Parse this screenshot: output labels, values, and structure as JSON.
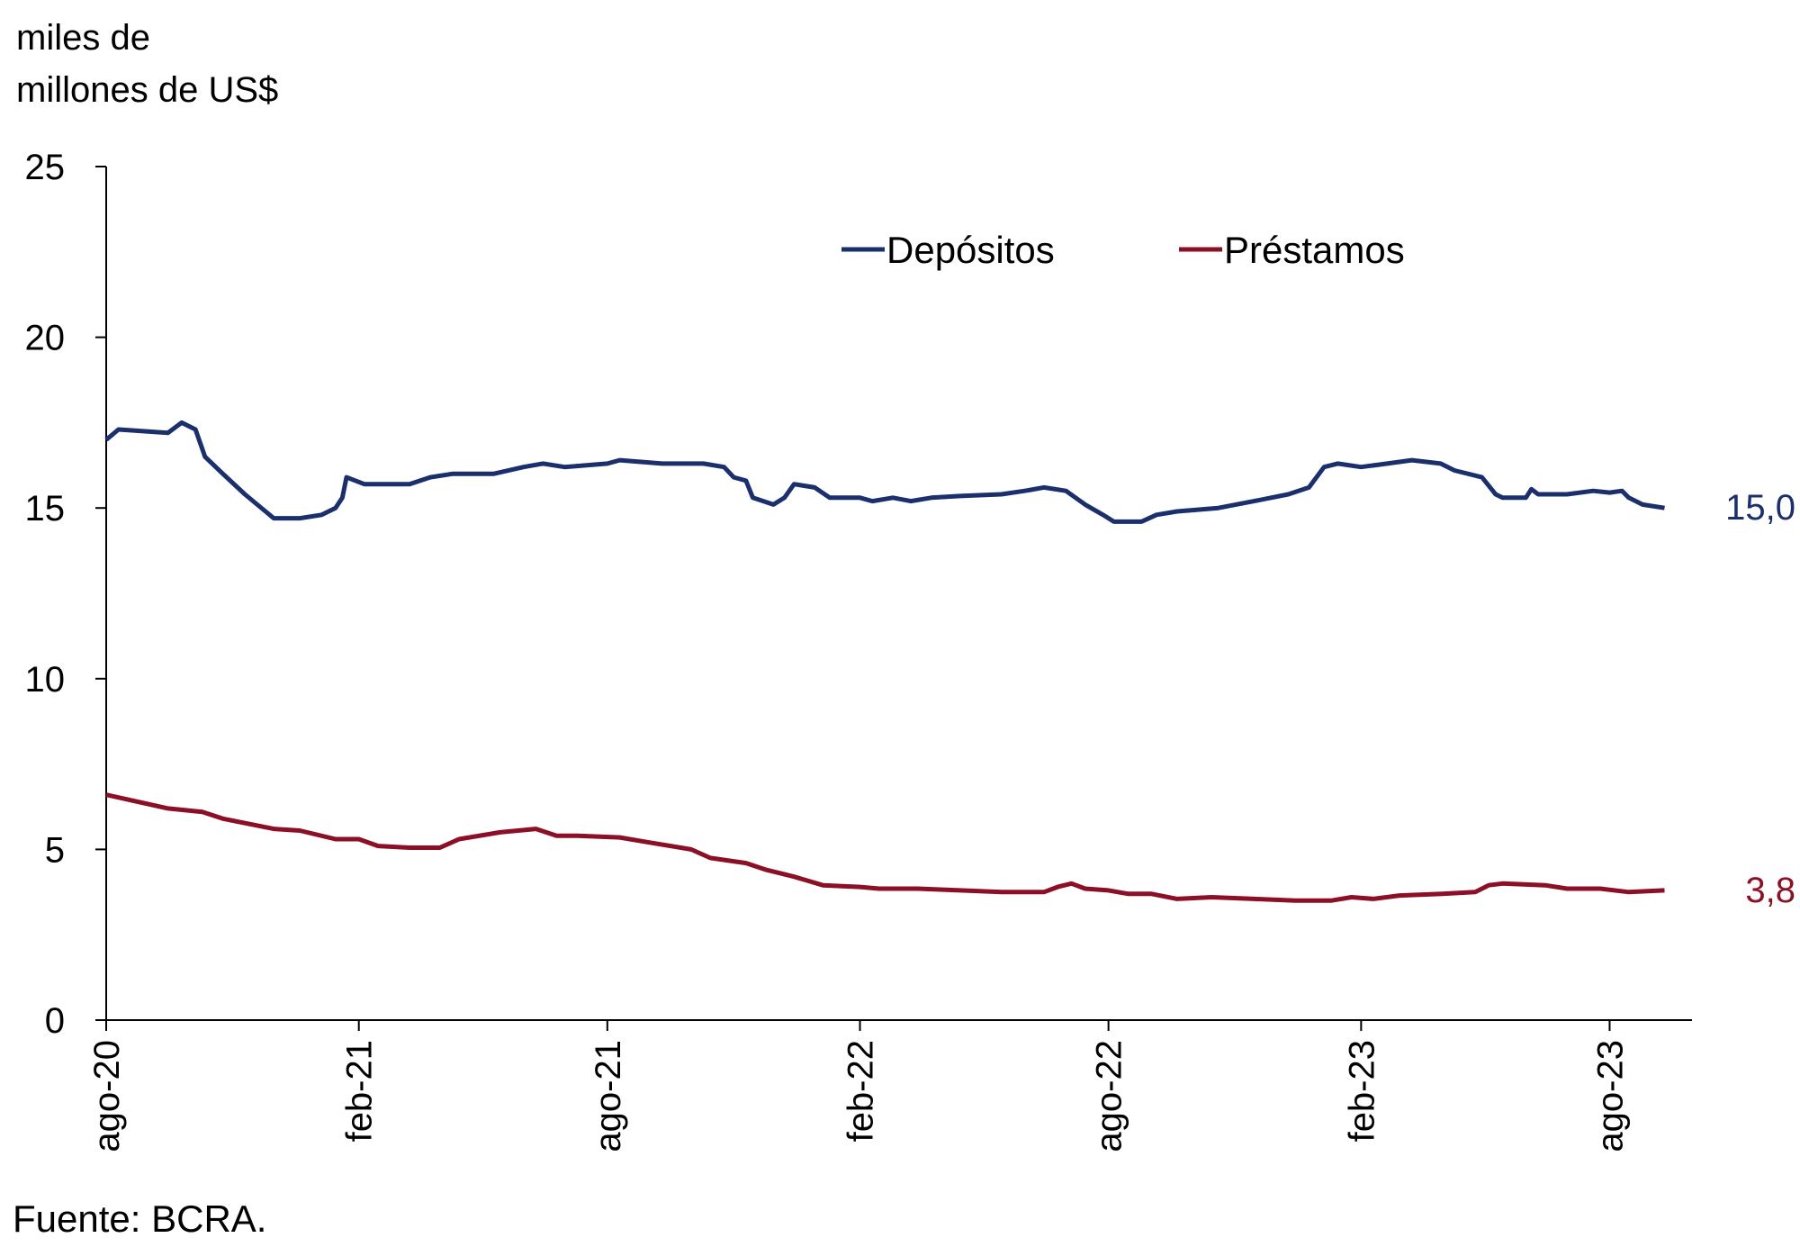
{
  "chart_data": {
    "type": "line",
    "ylabel": [
      "miles de",
      "millones de US$"
    ],
    "ylim": [
      0,
      25
    ],
    "yticks": [
      0,
      5,
      10,
      15,
      20,
      25
    ],
    "xlim": [
      "2020-08-01",
      "2023-09-30"
    ],
    "xticks": [
      {
        "date": "2020-08-01",
        "label": "ago-20"
      },
      {
        "date": "2021-02-01",
        "label": "feb-21"
      },
      {
        "date": "2021-08-01",
        "label": "ago-21"
      },
      {
        "date": "2022-02-01",
        "label": "feb-22"
      },
      {
        "date": "2022-08-01",
        "label": "ago-22"
      },
      {
        "date": "2023-02-01",
        "label": "feb-23"
      },
      {
        "date": "2023-08-01",
        "label": "ago-23"
      }
    ],
    "legend_position": "top-center",
    "series": [
      {
        "name": "Depósitos",
        "color": "#1a2f6b",
        "end_label": "15,0",
        "points": [
          [
            "2020-08-01",
            17.0
          ],
          [
            "2020-08-10",
            17.3
          ],
          [
            "2020-09-15",
            17.2
          ],
          [
            "2020-09-25",
            17.5
          ],
          [
            "2020-10-05",
            17.3
          ],
          [
            "2020-10-12",
            16.5
          ],
          [
            "2020-10-25",
            16.0
          ],
          [
            "2020-11-10",
            15.4
          ],
          [
            "2020-11-25",
            14.9
          ],
          [
            "2020-12-01",
            14.7
          ],
          [
            "2020-12-20",
            14.7
          ],
          [
            "2021-01-05",
            14.8
          ],
          [
            "2021-01-15",
            15.0
          ],
          [
            "2021-01-20",
            15.3
          ],
          [
            "2021-01-23",
            15.9
          ],
          [
            "2021-02-05",
            15.7
          ],
          [
            "2021-03-10",
            15.7
          ],
          [
            "2021-03-25",
            15.9
          ],
          [
            "2021-04-10",
            16.0
          ],
          [
            "2021-05-10",
            16.0
          ],
          [
            "2021-06-01",
            16.2
          ],
          [
            "2021-06-15",
            16.3
          ],
          [
            "2021-07-01",
            16.2
          ],
          [
            "2021-08-01",
            16.3
          ],
          [
            "2021-08-10",
            16.4
          ],
          [
            "2021-09-10",
            16.3
          ],
          [
            "2021-10-10",
            16.3
          ],
          [
            "2021-10-25",
            16.2
          ],
          [
            "2021-11-01",
            15.9
          ],
          [
            "2021-11-10",
            15.8
          ],
          [
            "2021-11-15",
            15.3
          ],
          [
            "2021-11-30",
            15.1
          ],
          [
            "2021-12-08",
            15.3
          ],
          [
            "2021-12-15",
            15.7
          ],
          [
            "2021-12-30",
            15.6
          ],
          [
            "2022-01-10",
            15.3
          ],
          [
            "2022-02-01",
            15.3
          ],
          [
            "2022-02-10",
            15.2
          ],
          [
            "2022-02-25",
            15.3
          ],
          [
            "2022-03-10",
            15.2
          ],
          [
            "2022-03-25",
            15.3
          ],
          [
            "2022-04-15",
            15.35
          ],
          [
            "2022-05-15",
            15.4
          ],
          [
            "2022-06-01",
            15.5
          ],
          [
            "2022-06-15",
            15.6
          ],
          [
            "2022-07-01",
            15.5
          ],
          [
            "2022-07-15",
            15.1
          ],
          [
            "2022-07-28",
            14.8
          ],
          [
            "2022-08-05",
            14.6
          ],
          [
            "2022-08-15",
            14.6
          ],
          [
            "2022-08-25",
            14.6
          ],
          [
            "2022-09-05",
            14.8
          ],
          [
            "2022-09-20",
            14.9
          ],
          [
            "2022-10-20",
            15.0
          ],
          [
            "2022-11-15",
            15.2
          ],
          [
            "2022-12-10",
            15.4
          ],
          [
            "2022-12-25",
            15.6
          ],
          [
            "2023-01-05",
            16.2
          ],
          [
            "2023-01-15",
            16.3
          ],
          [
            "2023-02-01",
            16.2
          ],
          [
            "2023-02-20",
            16.3
          ],
          [
            "2023-03-10",
            16.4
          ],
          [
            "2023-03-31",
            16.3
          ],
          [
            "2023-04-10",
            16.1
          ],
          [
            "2023-04-30",
            15.9
          ],
          [
            "2023-05-10",
            15.4
          ],
          [
            "2023-05-15",
            15.3
          ],
          [
            "2023-06-01",
            15.3
          ],
          [
            "2023-06-05",
            15.55
          ],
          [
            "2023-06-10",
            15.4
          ],
          [
            "2023-07-01",
            15.4
          ],
          [
            "2023-07-20",
            15.5
          ],
          [
            "2023-08-01",
            15.45
          ],
          [
            "2023-08-10",
            15.5
          ],
          [
            "2023-08-15",
            15.3
          ],
          [
            "2023-08-25",
            15.1
          ],
          [
            "2023-09-10",
            15.0
          ]
        ]
      },
      {
        "name": "Préstamos",
        "color": "#8b0f25",
        "end_label": "3,8",
        "points": [
          [
            "2020-08-01",
            6.6
          ],
          [
            "2020-09-15",
            6.2
          ],
          [
            "2020-10-10",
            6.1
          ],
          [
            "2020-10-25",
            5.9
          ],
          [
            "2020-12-01",
            5.6
          ],
          [
            "2020-12-20",
            5.55
          ],
          [
            "2021-01-15",
            5.3
          ],
          [
            "2021-02-01",
            5.3
          ],
          [
            "2021-02-15",
            5.1
          ],
          [
            "2021-03-10",
            5.05
          ],
          [
            "2021-04-01",
            5.05
          ],
          [
            "2021-04-15",
            5.3
          ],
          [
            "2021-05-15",
            5.5
          ],
          [
            "2021-06-10",
            5.6
          ],
          [
            "2021-06-25",
            5.4
          ],
          [
            "2021-07-10",
            5.4
          ],
          [
            "2021-08-10",
            5.35
          ],
          [
            "2021-09-01",
            5.2
          ],
          [
            "2021-10-01",
            5.0
          ],
          [
            "2021-10-15",
            4.75
          ],
          [
            "2021-11-10",
            4.6
          ],
          [
            "2021-11-25",
            4.4
          ],
          [
            "2021-12-15",
            4.2
          ],
          [
            "2022-01-05",
            3.95
          ],
          [
            "2022-02-01",
            3.9
          ],
          [
            "2022-02-15",
            3.85
          ],
          [
            "2022-03-15",
            3.85
          ],
          [
            "2022-04-15",
            3.8
          ],
          [
            "2022-05-15",
            3.75
          ],
          [
            "2022-06-15",
            3.75
          ],
          [
            "2022-06-25",
            3.9
          ],
          [
            "2022-07-05",
            4.0
          ],
          [
            "2022-07-15",
            3.85
          ],
          [
            "2022-08-01",
            3.8
          ],
          [
            "2022-08-15",
            3.7
          ],
          [
            "2022-09-01",
            3.7
          ],
          [
            "2022-09-20",
            3.55
          ],
          [
            "2022-10-15",
            3.6
          ],
          [
            "2022-11-15",
            3.55
          ],
          [
            "2022-12-15",
            3.5
          ],
          [
            "2023-01-10",
            3.5
          ],
          [
            "2023-01-25",
            3.6
          ],
          [
            "2023-02-10",
            3.55
          ],
          [
            "2023-03-01",
            3.65
          ],
          [
            "2023-04-01",
            3.7
          ],
          [
            "2023-04-25",
            3.75
          ],
          [
            "2023-05-05",
            3.95
          ],
          [
            "2023-05-15",
            4.0
          ],
          [
            "2023-06-15",
            3.95
          ],
          [
            "2023-07-01",
            3.85
          ],
          [
            "2023-07-25",
            3.85
          ],
          [
            "2023-08-15",
            3.75
          ],
          [
            "2023-09-10",
            3.8
          ]
        ]
      }
    ]
  },
  "footer": {
    "source": "Fuente: BCRA."
  }
}
